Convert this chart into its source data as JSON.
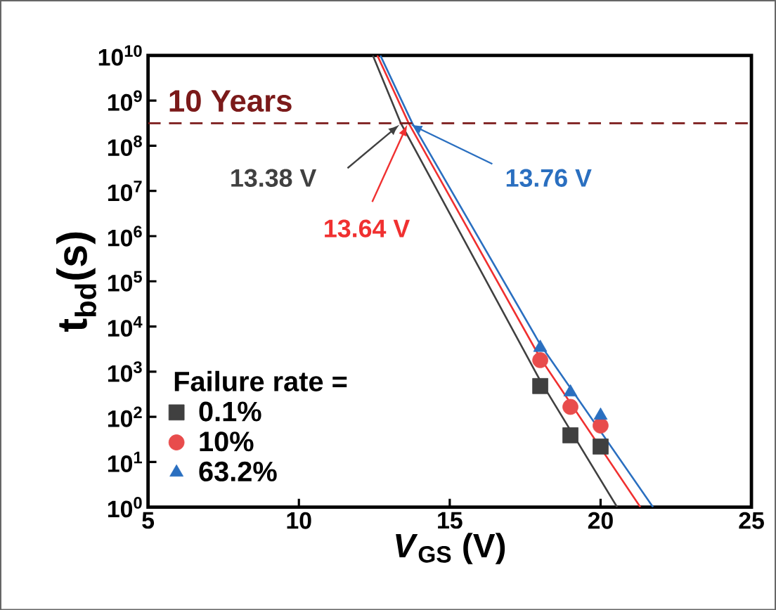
{
  "chart_data": {
    "type": "scatter",
    "log": "y",
    "xlabel": "*V*$_{GS}$ (V)",
    "ylabel": "t$_{bd}$(s)",
    "xlim": [
      5,
      25
    ],
    "ylim": [
      1,
      10000000000.0
    ],
    "xticks": [
      5,
      10,
      15,
      20,
      25
    ],
    "yticks": [
      {
        "value": 1,
        "label": "10$^{0}$"
      },
      {
        "value": 10,
        "label": "10$^{1}$"
      },
      {
        "value": 100,
        "label": "10$^{2}$"
      },
      {
        "value": 1000,
        "label": "10$^{3}$"
      },
      {
        "value": 10000.0,
        "label": "10$^{4}$"
      },
      {
        "value": 100000.0,
        "label": "10$^{5}$"
      },
      {
        "value": 1000000.0,
        "label": "10$^{6}$"
      },
      {
        "value": 10000000.0,
        "label": "10$^{7}$"
      },
      {
        "value": 100000000.0,
        "label": "10$^{8}$"
      },
      {
        "value": 1000000000.0,
        "label": "10$^{9}$"
      },
      {
        "value": 10000000000.0,
        "label": "10$^{10}$"
      }
    ],
    "legend": "bottom left",
    "legend_title": "Failure rate =",
    "series": [
      {
        "name": "0.1%",
        "marker": "square",
        "color": "#404040",
        "x": [
          18,
          19,
          20
        ],
        "values": [
          480,
          39,
          22
        ]
      },
      {
        "name": "10%",
        "marker": "circle",
        "color": "#e84c4c",
        "x": [
          18,
          19,
          20
        ],
        "values": [
          1800,
          166,
          64
        ]
      },
      {
        "name": "63.2%",
        "marker": "triangle",
        "color": "#2a6fc0",
        "x": [
          18,
          19,
          20
        ],
        "values": [
          3400,
          350,
          107
        ]
      },
      {
        "type": "line",
        "color": "#404040",
        "x": [
          12.45,
          13.38,
          18,
          20.55
        ],
        "values": [
          10000000000.0,
          315000000.0,
          631,
          1
        ]
      },
      {
        "type": "line",
        "color": "#f03030",
        "x": [
          12.6,
          13.64,
          18,
          21.32
        ],
        "values": [
          10000000000.0,
          315000000.0,
          2000,
          1
        ]
      },
      {
        "type": "line",
        "color": "#2a6fc0",
        "x": [
          12.7,
          13.76,
          18,
          21.74
        ],
        "values": [
          10000000000.0,
          315000000.0,
          4000,
          1
        ]
      }
    ],
    "ref_lines": [
      {
        "axis": "y",
        "value": 315000000.0,
        "label": "10 Years",
        "color": "#7b1a1a",
        "line_style": "dashed"
      }
    ],
    "annotations": [
      {
        "text": "13.38 V",
        "x": 13.38,
        "y": 315000000.0
      },
      {
        "text": "13.64 V",
        "x": 13.64,
        "y": 315000000.0
      },
      {
        "text": "13.76 V",
        "x": 13.76,
        "y": 315000000.0
      }
    ]
  }
}
